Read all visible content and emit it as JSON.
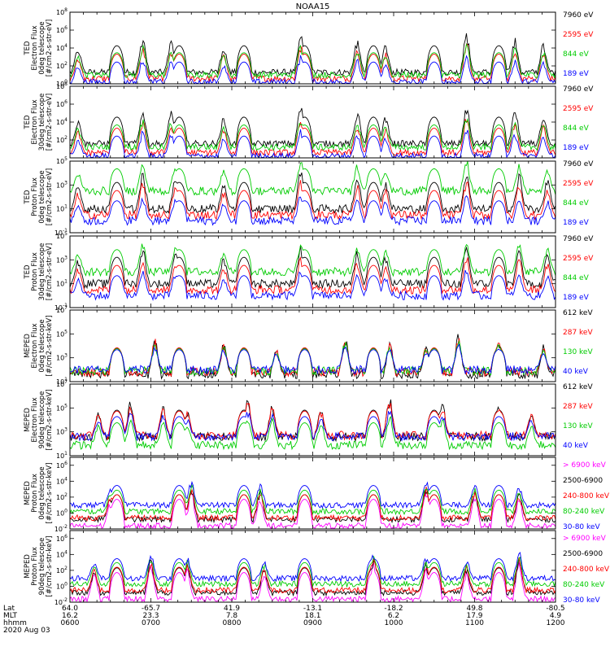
{
  "chart_data": {
    "type": "line",
    "title": "NOAA15",
    "date_label": "2020 Aug 03",
    "xaxis": {
      "rows": [
        {
          "label": "Lat",
          "values": [
            "64.0",
            "-65.7",
            "41.9",
            "-13.1",
            "-18.2",
            "49.8",
            "-80.5"
          ]
        },
        {
          "label": "MLT",
          "values": [
            "16.2",
            "23.3",
            "7.8",
            "18.1",
            "6.2",
            "17.9",
            "4.9"
          ]
        },
        {
          "label": "hhmm",
          "values": [
            "0600",
            "0700",
            "0800",
            "0900",
            "1000",
            "1100",
            "1200"
          ]
        }
      ],
      "time_range_hours": [
        6,
        12
      ]
    },
    "panels": [
      {
        "ylabel": [
          "TED",
          "Electron Flux",
          "0deg telescope",
          "[#/cm2-s-str-eV]"
        ],
        "yticks": [
          [
            "10",
            "0"
          ],
          [
            "10",
            "2"
          ],
          [
            "10",
            "4"
          ],
          [
            "10",
            "6"
          ],
          [
            "10",
            "8"
          ]
        ],
        "ylog": [
          0,
          8
        ],
        "legend": [
          {
            "label": "7960 eV",
            "color": "#000000"
          },
          {
            "label": "2595 eV",
            "color": "#ff0000"
          },
          {
            "label": "844 eV",
            "color": "#00cc00"
          },
          {
            "label": "189 eV",
            "color": "#0000ff"
          }
        ],
        "baselines": [
          1.3,
          0.6,
          1.0,
          0.2
        ],
        "burst_centers_hours": [
          6.1,
          6.9,
          7.25,
          7.9,
          8.85,
          9.55,
          9.9,
          10.9,
          11.5,
          11.85
        ]
      },
      {
        "ylabel": [
          "TED",
          "Electron Flux",
          "30deg telescope",
          "[#/cm2-s-str-eV]"
        ],
        "yticks": [
          [
            "10",
            "2"
          ],
          [
            "10",
            "4"
          ],
          [
            "10",
            "6"
          ],
          [
            "10",
            "8"
          ]
        ],
        "ylog": [
          0,
          8
        ],
        "legend": [
          {
            "label": "7960 eV",
            "color": "#000000"
          },
          {
            "label": "2595 eV",
            "color": "#ff0000"
          },
          {
            "label": "844 eV",
            "color": "#00cc00"
          },
          {
            "label": "189 eV",
            "color": "#0000ff"
          }
        ],
        "baselines": [
          1.6,
          0.6,
          1.2,
          0.2
        ],
        "burst_centers_hours": [
          6.1,
          6.9,
          7.25,
          7.9,
          8.85,
          9.55,
          9.9,
          10.9,
          11.5,
          11.85
        ]
      },
      {
        "ylabel": [
          "TED",
          "Proton Flux",
          "0deg telescope",
          "[#/cm2-s-str-eV]"
        ],
        "yticks": [
          [
            "10",
            "-1"
          ],
          [
            "10",
            "1"
          ],
          [
            "10",
            "3"
          ],
          [
            "10",
            "5"
          ]
        ],
        "ylog": [
          -1,
          5
        ],
        "legend": [
          {
            "label": "7960 eV",
            "color": "#000000"
          },
          {
            "label": "2595 eV",
            "color": "#ff0000"
          },
          {
            "label": "844 eV",
            "color": "#00cc00"
          },
          {
            "label": "189 eV",
            "color": "#0000ff"
          }
        ],
        "baselines": [
          1.0,
          0.5,
          2.5,
          0.0
        ],
        "burst_centers_hours": [
          6.1,
          6.9,
          7.3,
          7.9,
          8.85,
          9.55,
          9.9,
          10.9,
          11.55,
          11.9
        ]
      },
      {
        "ylabel": [
          "TED",
          "Proton Flux",
          "30deg telescope",
          "[#/cm2-s-str-eV]"
        ],
        "yticks": [
          [
            "10",
            "-1"
          ],
          [
            "10",
            "1"
          ],
          [
            "10",
            "3"
          ],
          [
            "10",
            "5"
          ]
        ],
        "ylog": [
          -1,
          5
        ],
        "legend": [
          {
            "label": "7960 eV",
            "color": "#000000"
          },
          {
            "label": "2595 eV",
            "color": "#ff0000"
          },
          {
            "label": "844 eV",
            "color": "#00cc00"
          },
          {
            "label": "189 eV",
            "color": "#0000ff"
          }
        ],
        "baselines": [
          1.0,
          0.5,
          2.0,
          0.0
        ],
        "burst_centers_hours": [
          6.1,
          6.9,
          7.3,
          7.9,
          8.85,
          9.55,
          9.9,
          10.9,
          11.55,
          11.9
        ]
      },
      {
        "ylabel": [
          "MEPED",
          "Electron Flux",
          "0deg telescope",
          "[#/cm2-s-str-keV]"
        ],
        "yticks": [
          [
            "10",
            "1"
          ],
          [
            "10",
            "3"
          ],
          [
            "10",
            "5"
          ],
          [
            "10",
            "7"
          ]
        ],
        "ylog": [
          1,
          7
        ],
        "legend": [
          {
            "label": "612 keV",
            "color": "#000000"
          },
          {
            "label": "287 keV",
            "color": "#ff0000"
          },
          {
            "label": "130 keV",
            "color": "#00cc00"
          },
          {
            "label": "40 keV",
            "color": "#0000ff"
          }
        ],
        "baselines": [
          1.6,
          1.8,
          1.9,
          2.0
        ],
        "burst_centers_hours": [
          6.6,
          7.05,
          7.9,
          8.55,
          9.4,
          9.95,
          10.4,
          10.8,
          11.3,
          11.85
        ]
      },
      {
        "ylabel": [
          "MEPED",
          "Electron Flux",
          "90deg telescope",
          "[#/cm2-s-str-keV]"
        ],
        "yticks": [
          [
            "10",
            "1"
          ],
          [
            "10",
            "3"
          ],
          [
            "10",
            "5"
          ],
          [
            "10",
            "7"
          ]
        ],
        "ylog": [
          1,
          7
        ],
        "legend": [
          {
            "label": "612 keV",
            "color": "#000000"
          },
          {
            "label": "287 keV",
            "color": "#ff0000"
          },
          {
            "label": "130 keV",
            "color": "#00cc00"
          },
          {
            "label": "40 keV",
            "color": "#0000ff"
          }
        ],
        "baselines": [
          2.6,
          2.7,
          1.9,
          2.6
        ],
        "burst_centers_hours": [
          6.35,
          6.75,
          7.15,
          7.45,
          8.2,
          8.5,
          9.1,
          9.95,
          10.6,
          11.3,
          11.7
        ]
      },
      {
        "ylabel": [
          "MEPED",
          "Proton Flux",
          "0deg telescope",
          "[#/cm2-s-str-keV]"
        ],
        "yticks": [
          [
            "10",
            "-2"
          ],
          [
            "10",
            "0"
          ],
          [
            "10",
            "2"
          ],
          [
            "10",
            "4"
          ],
          [
            "10",
            "6"
          ]
        ],
        "ylog": [
          -2,
          7
        ],
        "legend": [
          {
            "label": "> 6900 keV",
            "color": "#ff00ff"
          },
          {
            "label": "2500-6900",
            "color": "#000000"
          },
          {
            "label": "240-800 keV",
            "color": "#ff0000"
          },
          {
            "label": "80-240 keV",
            "color": "#00cc00"
          },
          {
            "label": "30-80 keV",
            "color": "#0000ff"
          }
        ],
        "baselines": [
          -1.6,
          -0.8,
          -0.6,
          0.2,
          1.0
        ],
        "burst_centers_hours": [
          6.5,
          7.5,
          8.35,
          9.75,
          10.4,
          11.0,
          11.55
        ]
      },
      {
        "ylabel": [
          "MEPED",
          "Proton Flux",
          "90deg telescope",
          "[#/cm2-s-str-keV]"
        ],
        "yticks": [
          [
            "10",
            "-2"
          ],
          [
            "10",
            "0"
          ],
          [
            "10",
            "2"
          ],
          [
            "10",
            "4"
          ],
          [
            "10",
            "6"
          ]
        ],
        "ylog": [
          -2,
          7
        ],
        "legend": [
          {
            "label": "> 6900 keV",
            "color": "#ff00ff"
          },
          {
            "label": "2500-6900",
            "color": "#000000"
          },
          {
            "label": "240-800 keV",
            "color": "#ff0000"
          },
          {
            "label": "80-240 keV",
            "color": "#00cc00"
          },
          {
            "label": "30-80 keV",
            "color": "#0000ff"
          }
        ],
        "baselines": [
          -1.6,
          -0.8,
          -0.5,
          0.3,
          1.0
        ],
        "burst_centers_hours": [
          6.3,
          7.0,
          7.45,
          8.4,
          9.75,
          10.4,
          10.9,
          11.55
        ]
      }
    ],
    "pass_centers_hours": [
      6.58,
      7.35,
      8.15,
      8.9,
      9.75,
      10.5,
      11.3
    ]
  }
}
